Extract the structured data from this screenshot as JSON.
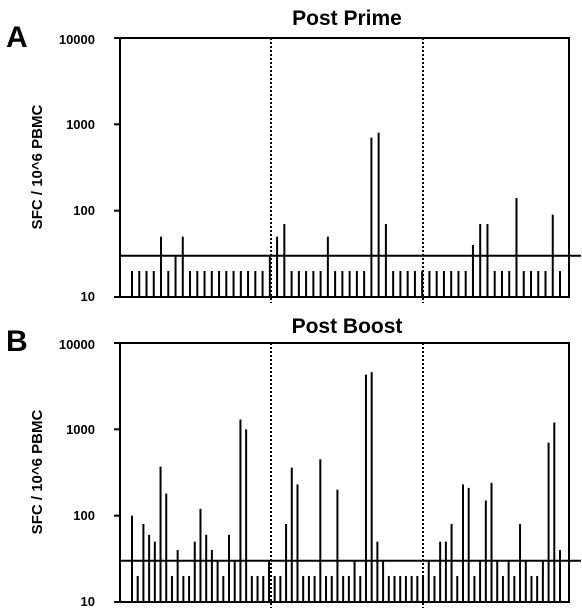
{
  "chart_data": [
    {
      "type": "bar",
      "panel_letter": "A",
      "title": "Post Prime",
      "ylabel": "SFC / 10^6 PBMC",
      "y_scale": "log",
      "ylim": [
        10,
        10000
      ],
      "y_ticks": [
        "10",
        "100",
        "1000",
        "10000"
      ],
      "threshold": 30,
      "group_dividers": 2,
      "values": [
        20,
        20,
        20,
        20,
        50,
        20,
        30,
        50,
        20,
        20,
        20,
        20,
        20,
        20,
        20,
        20,
        20,
        20,
        20,
        30,
        50,
        70,
        20,
        20,
        20,
        20,
        20,
        50,
        20,
        20,
        20,
        20,
        20,
        700,
        800,
        70,
        20,
        20,
        20,
        20,
        20,
        20,
        20,
        20,
        20,
        20,
        20,
        40,
        70,
        70,
        20,
        20,
        20,
        140,
        20,
        20,
        20,
        20,
        90,
        20
      ]
    },
    {
      "type": "bar",
      "panel_letter": "B",
      "title": "Post Boost",
      "ylabel": "SFC / 10^6 PBMC",
      "y_scale": "log",
      "ylim": [
        10,
        10000
      ],
      "y_ticks": [
        "10",
        "100",
        "1000",
        "10000"
      ],
      "threshold": 30,
      "group_dividers": 2,
      "values": [
        100,
        20,
        80,
        60,
        50,
        370,
        180,
        20,
        40,
        20,
        20,
        50,
        120,
        60,
        40,
        30,
        20,
        60,
        30,
        1300,
        1000,
        20,
        20,
        20,
        30,
        20,
        20,
        80,
        360,
        230,
        20,
        20,
        20,
        450,
        20,
        20,
        200,
        20,
        20,
        30,
        20,
        4300,
        4600,
        50,
        30,
        20,
        20,
        20,
        20,
        20,
        20,
        20,
        30,
        20,
        50,
        50,
        80,
        20,
        230,
        210,
        20,
        30,
        150,
        240,
        30,
        20,
        30,
        20,
        80,
        30,
        20,
        20,
        30,
        700,
        1200,
        40
      ]
    }
  ]
}
